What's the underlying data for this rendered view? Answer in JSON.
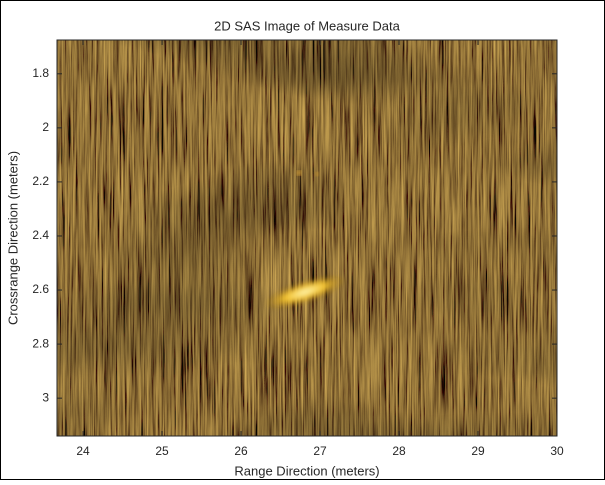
{
  "chart_data": {
    "type": "image",
    "title": "2D SAS Image of Measure Data",
    "x_label": "Range Direction (meters)",
    "y_label": "Crossrange Direction (meters)",
    "xlim": [
      23.67,
      30
    ],
    "xticks": [
      24,
      25,
      26,
      27,
      28,
      29,
      30
    ],
    "ylim": [
      1.675,
      3.14
    ],
    "yticks": [
      1.8,
      2,
      2.2,
      2.4,
      2.6,
      2.8,
      3
    ],
    "y_reversed": true
  }
}
